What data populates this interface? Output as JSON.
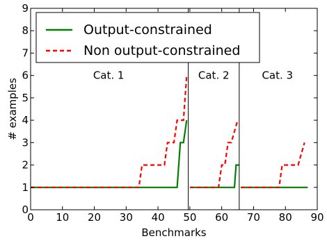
{
  "chart_data": {
    "type": "line",
    "xlabel": "Benchmarks",
    "ylabel": "# examples",
    "xlim": [
      0,
      90
    ],
    "ylim": [
      0,
      9
    ],
    "x_ticks": [
      0,
      10,
      20,
      30,
      40,
      50,
      60,
      70,
      80,
      90
    ],
    "y_ticks": [
      0,
      1,
      2,
      3,
      4,
      5,
      6,
      7,
      8,
      9
    ],
    "grid": false,
    "legend_position": "top-left",
    "dividers": [
      49.5,
      65.5
    ],
    "category_labels": [
      {
        "text": "Cat. 1",
        "x": 24.5,
        "y": 6
      },
      {
        "text": "Cat. 2",
        "x": 57.5,
        "y": 6
      },
      {
        "text": "Cat. 3",
        "x": 77.5,
        "y": 6
      }
    ],
    "series": [
      {
        "name": "Output-constrained",
        "color": "#008000",
        "dash": "solid",
        "segments": [
          [
            [
              0,
              1
            ],
            [
              46,
              1
            ],
            [
              47,
              3
            ],
            [
              48,
              3
            ],
            [
              49,
              4
            ]
          ],
          [
            [
              50,
              1
            ],
            [
              64,
              1
            ],
            [
              64.5,
              2
            ],
            [
              65.5,
              2
            ]
          ],
          [
            [
              66,
              1
            ],
            [
              87,
              1
            ]
          ]
        ]
      },
      {
        "name": "Non output-constrained",
        "color": "#ff0000",
        "dash": "dashed",
        "segments": [
          [
            [
              0,
              1
            ],
            [
              34,
              1
            ],
            [
              35,
              2
            ],
            [
              42,
              2
            ],
            [
              43,
              3
            ],
            [
              45,
              3
            ],
            [
              46,
              4
            ],
            [
              48,
              4
            ],
            [
              49,
              6
            ]
          ],
          [
            [
              50,
              1
            ],
            [
              59,
              1
            ],
            [
              60,
              2
            ],
            [
              61,
              2
            ],
            [
              62,
              3
            ],
            [
              63,
              3
            ],
            [
              65,
              4
            ]
          ],
          [
            [
              66,
              1
            ],
            [
              78,
              1
            ],
            [
              79,
              2
            ],
            [
              84,
              2
            ],
            [
              86,
              3
            ]
          ]
        ]
      }
    ]
  }
}
